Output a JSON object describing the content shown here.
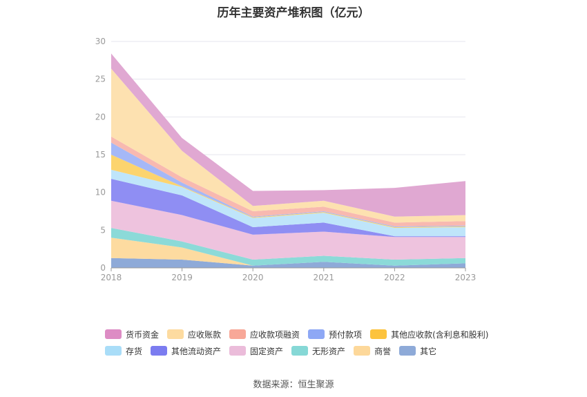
{
  "title": "历年主要资产堆积图（亿元）",
  "source": "数据来源：恒生聚源",
  "chart_data": {
    "type": "area",
    "stacked": true,
    "x": [
      "2018",
      "2019",
      "2020",
      "2021",
      "2022",
      "2023"
    ],
    "ylim": [
      0,
      30
    ],
    "yticks": [
      0,
      5,
      10,
      15,
      20,
      25,
      30
    ],
    "grid": true,
    "legend_position": "bottom",
    "series": [
      {
        "name": "其它",
        "color": "#8eaad8",
        "values": [
          1.3,
          1.1,
          0.3,
          0.8,
          0.3,
          0.6
        ]
      },
      {
        "name": "商誉",
        "color": "#fddba0",
        "values": [
          2.7,
          1.6,
          0.0,
          0.0,
          0.0,
          0.0
        ]
      },
      {
        "name": "无形资产",
        "color": "#8cdad8",
        "values": [
          1.3,
          0.8,
          0.8,
          0.8,
          0.8,
          0.7
        ]
      },
      {
        "name": "固定资产",
        "color": "#eec3de",
        "values": [
          3.6,
          3.5,
          3.3,
          3.2,
          3.0,
          2.8
        ]
      },
      {
        "name": "其他流动资产",
        "color": "#8f8ef3",
        "values": [
          2.9,
          2.6,
          1.0,
          1.2,
          0.1,
          0.1
        ]
      },
      {
        "name": "存货",
        "color": "#bfe5fa",
        "values": [
          1.2,
          1.1,
          1.2,
          1.3,
          1.1,
          1.2
        ]
      },
      {
        "name": "其他应收款(含利息和股利)",
        "color": "#fcd46e",
        "values": [
          2.0,
          0.1,
          0.1,
          0.1,
          0.1,
          0.1
        ]
      },
      {
        "name": "预付款项",
        "color": "#a5b8f7",
        "values": [
          1.6,
          0.5,
          0.1,
          0.1,
          0.1,
          0.1
        ]
      },
      {
        "name": "应收款项融资",
        "color": "#f8b9b0",
        "values": [
          0.8,
          0.7,
          0.7,
          0.6,
          0.5,
          0.6
        ]
      },
      {
        "name": "应收账款",
        "color": "#fde1b0",
        "values": [
          9.0,
          3.5,
          0.7,
          0.8,
          0.8,
          0.8
        ]
      },
      {
        "name": "货币资金",
        "color": "#e0a8d2",
        "values": [
          2.0,
          1.7,
          2.0,
          1.4,
          3.8,
          4.5
        ]
      }
    ]
  },
  "legend": {
    "row1": [
      {
        "name": "货币资金",
        "color": "#dd8cc4"
      },
      {
        "name": "应收账款",
        "color": "#fddba0"
      },
      {
        "name": "应收款项融资",
        "color": "#f8a898"
      },
      {
        "name": "预付款项",
        "color": "#8ea8f5"
      },
      {
        "name": "其他应收款(含利息和股利)",
        "color": "#fcc33e"
      }
    ],
    "row2": [
      {
        "name": "存货",
        "color": "#a9ddf8"
      },
      {
        "name": "其他流动资产",
        "color": "#7b7cf0"
      },
      {
        "name": "固定资产",
        "color": "#ebbcda"
      },
      {
        "name": "无形资产",
        "color": "#86d8d6"
      },
      {
        "name": "商誉",
        "color": "#fdd89a"
      },
      {
        "name": "其它",
        "color": "#8eaad8"
      }
    ]
  }
}
